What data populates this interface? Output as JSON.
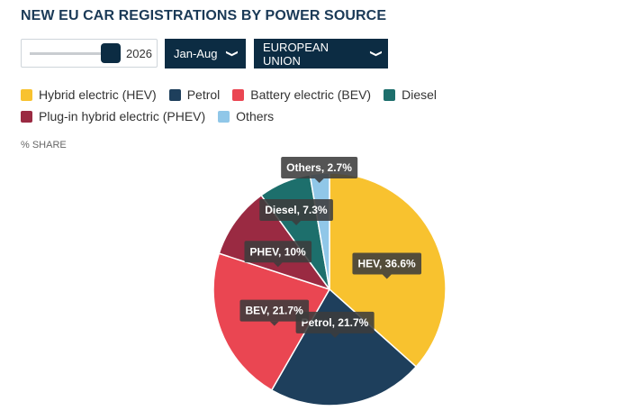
{
  "title": "NEW EU CAR REGISTRATIONS BY POWER SOURCE",
  "controls": {
    "year_value": "2026",
    "period_label": "Jan-Aug",
    "region_label": "EUROPEAN UNION",
    "year_slider_position": 0.85
  },
  "share_label": "% SHARE",
  "chart_data": {
    "type": "pie",
    "title": "NEW EU CAR REGISTRATIONS BY POWER SOURCE",
    "unit": "% SHARE",
    "slices": [
      {
        "legend": "Hybrid electric (HEV)",
        "label": "HEV, 36.6%",
        "value": 36.6,
        "color": "#f8c22f"
      },
      {
        "legend": "Petrol",
        "label": "Petrol, 21.7%",
        "value": 21.7,
        "color": "#1e3f5c"
      },
      {
        "legend": "Battery electric (BEV)",
        "label": "BEV, 21.7%",
        "value": 21.7,
        "color": "#ea4652"
      },
      {
        "legend": "Plug-in hybrid electric (PHEV)",
        "label": "PHEV, 10%",
        "value": 10,
        "color": "#9a2a42"
      },
      {
        "legend": "Diesel",
        "label": "Diesel, 7.3%",
        "value": 7.3,
        "color": "#1d6f6c"
      },
      {
        "legend": "Others",
        "label": "Others, 2.7%",
        "value": 2.7,
        "color": "#90c7e8"
      }
    ],
    "legend_order": [
      "Hybrid electric (HEV)",
      "Petrol",
      "Battery electric (BEV)",
      "Diesel",
      "Plug-in hybrid electric (PHEV)",
      "Others"
    ],
    "legend_placement": "top-left"
  }
}
